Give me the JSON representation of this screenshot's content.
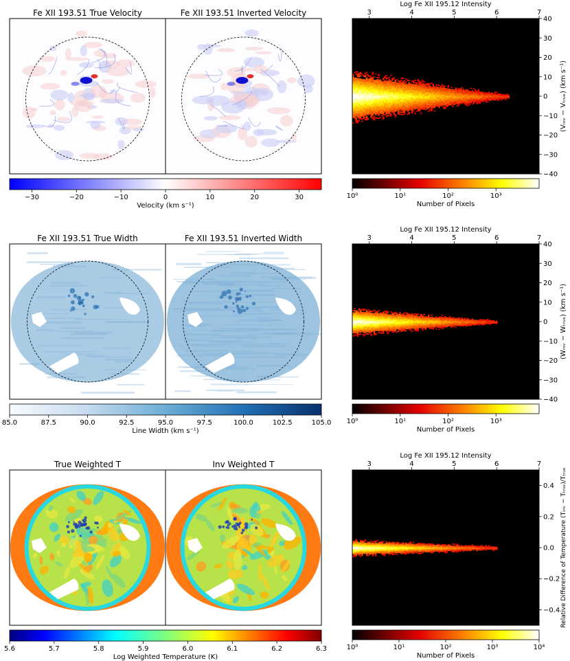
{
  "rows": [
    {
      "maps": [
        {
          "title": "Fe XII 193.51 True Velocity",
          "kind": "velocity",
          "seed": 11
        },
        {
          "title": "Fe XII 193.51 Inverted Velocity",
          "kind": "velocity",
          "seed": 11
        }
      ],
      "colorbar": {
        "label": "Velocity (km s⁻¹)",
        "colormap": "bwr",
        "range": [
          -35,
          35
        ],
        "ticks": [
          "−30",
          "−20",
          "−10",
          "0",
          "10",
          "20",
          "30"
        ],
        "tick_values": [
          -30,
          -20,
          -10,
          0,
          10,
          20,
          30
        ]
      },
      "hist": {
        "top_label": "Log Fe XII 195.12 Intensity",
        "top_ticks": [
          "3",
          "4",
          "5",
          "6",
          "7"
        ],
        "x_range": [
          2.6,
          7
        ],
        "right_label": "(Vᵢₙᵥ − Vₜᵣᵤₑ) (km s⁻¹)",
        "right_ticks": [
          "40",
          "30",
          "20",
          "10",
          "0",
          "−10",
          "−20",
          "−30",
          "−40"
        ],
        "right_values": [
          40,
          30,
          20,
          10,
          0,
          -10,
          -20,
          -30,
          -40
        ],
        "y_range": [
          -40,
          40
        ],
        "spread": 6,
        "extent": 6.3,
        "count_label": "Number of Pixels",
        "count_ticks": [
          "10⁰",
          "10¹",
          "10²",
          "10³"
        ],
        "count_decades": 3.9
      }
    },
    {
      "maps": [
        {
          "title": "Fe XII 193.51 True Width",
          "kind": "width",
          "seed": 23
        },
        {
          "title": "Fe XII 193.51 Inverted Width",
          "kind": "width",
          "seed": 23
        }
      ],
      "colorbar": {
        "label": "Line Width (km s⁻¹)",
        "colormap": "blues",
        "range": [
          85,
          105
        ],
        "ticks": [
          "85.0",
          "87.5",
          "90.0",
          "92.5",
          "95.0",
          "97.5",
          "100.0",
          "102.5",
          "105.0"
        ],
        "tick_values": [
          85,
          87.5,
          90,
          92.5,
          95,
          97.5,
          100,
          102.5,
          105
        ]
      },
      "hist": {
        "top_label": "Log Fe XII 195.12 Intensity",
        "top_ticks": [
          "3",
          "4",
          "5",
          "6",
          "7"
        ],
        "x_range": [
          2.6,
          7
        ],
        "right_label": "(Wᵢₙᵥ − Wₜᵣᵤₑ) (km s⁻¹)",
        "right_ticks": [
          "40",
          "30",
          "20",
          "10",
          "0",
          "−10",
          "−20",
          "−30",
          "−40"
        ],
        "right_values": [
          40,
          30,
          20,
          10,
          0,
          -10,
          -20,
          -30,
          -40
        ],
        "y_range": [
          -40,
          40
        ],
        "spread": 3,
        "extent": 6.0,
        "count_label": "Number of Pixels",
        "count_ticks": [
          "10⁰",
          "10¹",
          "10²",
          "10³"
        ],
        "count_decades": 3.9
      }
    },
    {
      "maps": [
        {
          "title": "True Weighted T",
          "kind": "temp",
          "seed": 37
        },
        {
          "title": "Inv Weighted T",
          "kind": "temp",
          "seed": 37
        }
      ],
      "colorbar": {
        "label": "Log Weighted Temperature (K)",
        "colormap": "jet",
        "range": [
          5.6,
          6.3
        ],
        "ticks": [
          "5.6",
          "5.7",
          "5.8",
          "5.9",
          "6.0",
          "6.1",
          "6.2",
          "6.3"
        ],
        "tick_values": [
          5.6,
          5.7,
          5.8,
          5.9,
          6.0,
          6.1,
          6.2,
          6.3
        ]
      },
      "hist": {
        "top_label": "Log Fe XII 195.12 Intensity",
        "top_ticks": [
          "3",
          "4",
          "5",
          "6",
          "7"
        ],
        "x_range": [
          2.6,
          7
        ],
        "right_label": "Relative Difference of Temperature (Tᵢₙᵥ − Tₜᵣᵤₑ)/Tₜᵣᵤₑ",
        "right_ticks": [
          "0.4",
          "0.2",
          "0.0",
          "−0.2",
          "−0.4"
        ],
        "right_values": [
          0.4,
          0.2,
          0.0,
          -0.2,
          -0.4
        ],
        "y_range": [
          -0.5,
          0.5
        ],
        "spread": 0.02,
        "extent": 6.0,
        "count_label": "Number of Pixels",
        "count_ticks": [
          "10⁰",
          "10¹",
          "10²",
          "10³",
          "10⁴"
        ],
        "count_decades": 4
      }
    }
  ],
  "chart_data": [
    {
      "type": "heatmap",
      "title": "Fe XII 193.51 True Velocity",
      "colorbar_label": "Velocity (km s⁻¹)",
      "colorbar_range": [
        -35,
        35
      ]
    },
    {
      "type": "heatmap",
      "title": "Fe XII 193.51 Inverted Velocity",
      "colorbar_label": "Velocity (km s⁻¹)",
      "colorbar_range": [
        -35,
        35
      ]
    },
    {
      "type": "heatmap",
      "xlabel": "Log Fe XII 195.12 Intensity",
      "xlim": [
        2.6,
        7
      ],
      "ylabel": "(Vᵢₙᵥ − Vₜᵣᵤₑ) (km s⁻¹)",
      "ylim": [
        -40,
        40
      ],
      "colorbar_label": "Number of Pixels",
      "colorbar_scale": "log"
    },
    {
      "type": "heatmap",
      "title": "Fe XII 193.51 True Width",
      "colorbar_label": "Line Width (km s⁻¹)",
      "colorbar_range": [
        85,
        105
      ]
    },
    {
      "type": "heatmap",
      "title": "Fe XII 193.51 Inverted Width",
      "colorbar_label": "Line Width (km s⁻¹)",
      "colorbar_range": [
        85,
        105
      ]
    },
    {
      "type": "heatmap",
      "xlabel": "Log Fe XII 195.12 Intensity",
      "xlim": [
        2.6,
        7
      ],
      "ylabel": "(Wᵢₙᵥ − Wₜᵣᵤₑ) (km s⁻¹)",
      "ylim": [
        -40,
        40
      ],
      "colorbar_label": "Number of Pixels",
      "colorbar_scale": "log"
    },
    {
      "type": "heatmap",
      "title": "True Weighted T",
      "colorbar_label": "Log Weighted Temperature (K)",
      "colorbar_range": [
        5.6,
        6.3
      ]
    },
    {
      "type": "heatmap",
      "title": "Inv Weighted T",
      "colorbar_label": "Log Weighted Temperature (K)",
      "colorbar_range": [
        5.6,
        6.3
      ]
    },
    {
      "type": "heatmap",
      "xlabel": "Log Fe XII 195.12 Intensity",
      "xlim": [
        2.6,
        7
      ],
      "ylabel": "Relative Difference of Temperature (Tᵢₙᵥ − Tₜᵣᵤₑ)/Tₜᵣᵤₑ",
      "ylim": [
        -0.5,
        0.5
      ],
      "colorbar_label": "Number of Pixels",
      "colorbar_scale": "log"
    }
  ]
}
